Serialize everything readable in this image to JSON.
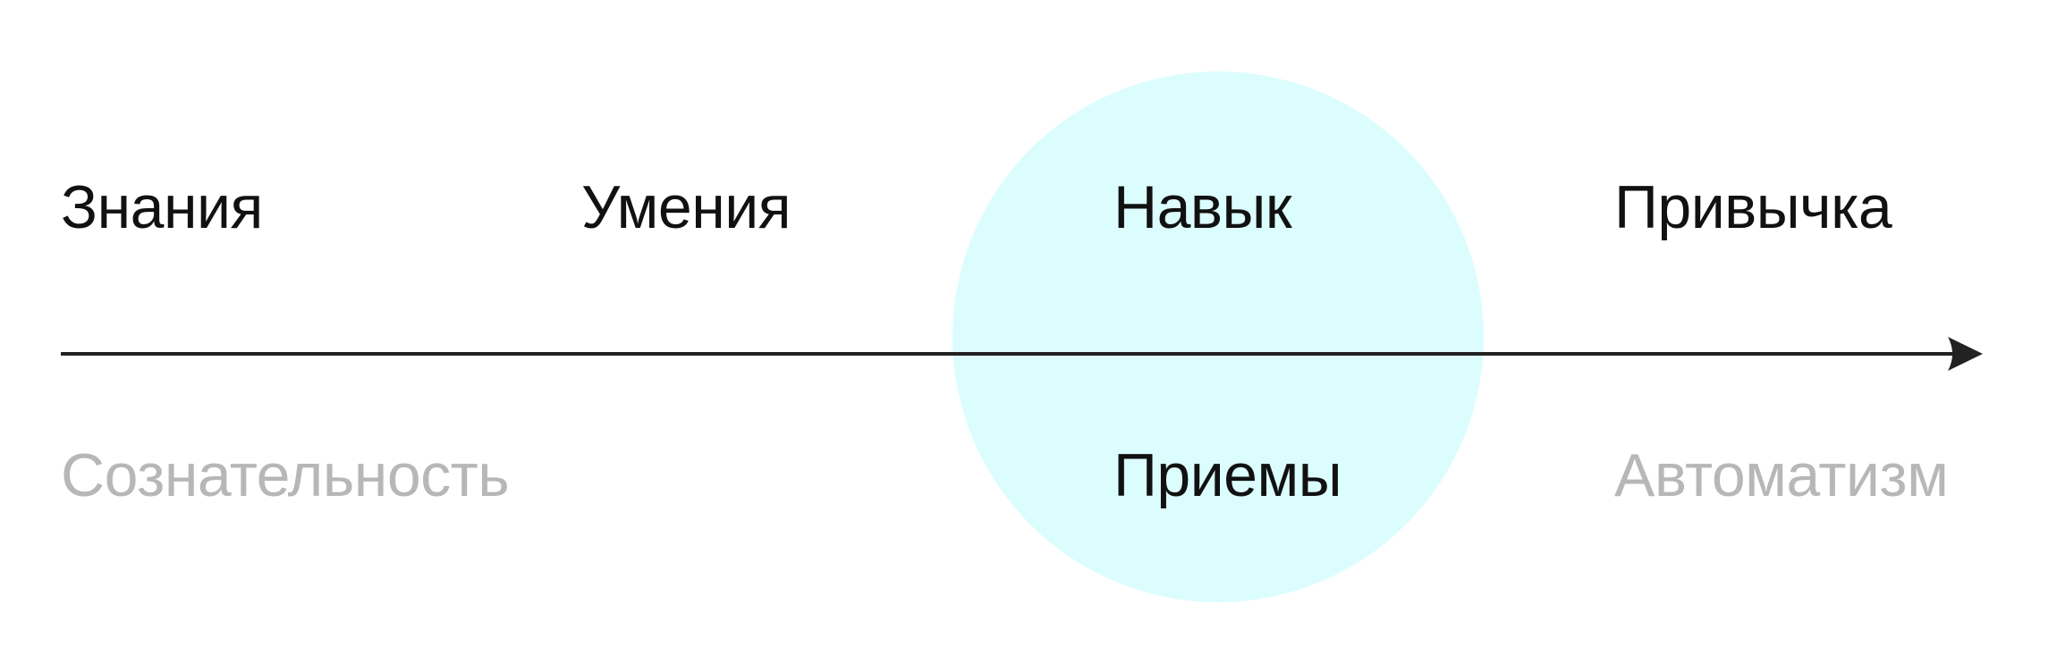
{
  "colors": {
    "background": "#ffffff",
    "highlight": "#dcfdfd",
    "axis": "#222222",
    "primary_text": "#111111",
    "muted_text": "#b7b7b7"
  },
  "stages": [
    "Знания",
    "Умения",
    "Навык",
    "Привычка"
  ],
  "qualities": {
    "left": "Сознательность",
    "center": "Приемы",
    "right": "Автоматизм"
  },
  "axis": {
    "icon": "arrow-right-icon"
  }
}
